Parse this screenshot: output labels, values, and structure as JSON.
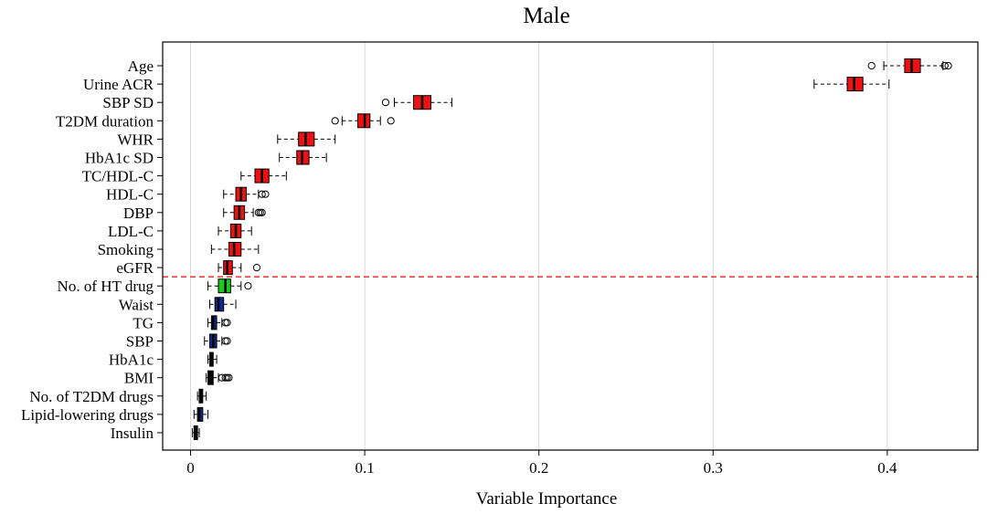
{
  "chart_data": {
    "type": "boxplot",
    "title": "Male",
    "xlabel": "Variable Importance",
    "ylabel": "",
    "xlim": [
      -0.016,
      0.452
    ],
    "xticks": [
      0,
      0.1,
      0.2,
      0.3,
      0.4
    ],
    "xtick_labels": [
      "0",
      "0.1",
      "0.2",
      "0.3",
      "0.4"
    ],
    "grid": "vertical",
    "threshold_between": [
      "eGFR",
      "No. of HT drug"
    ],
    "threshold_color": "#e8211c",
    "colors": {
      "red": "#ee1111",
      "green": "#1ec81e",
      "blue": "#102a8c",
      "black": "#000000",
      "grid": "#d9d9d9"
    },
    "variables": [
      {
        "label": "Age",
        "color": "red",
        "whisker_low": 0.398,
        "q1": 0.41,
        "median": 0.414,
        "q3": 0.419,
        "whisker_high": 0.432,
        "outliers": [
          0.391,
          0.433,
          0.435
        ]
      },
      {
        "label": "Urine ACR",
        "color": "red",
        "whisker_low": 0.358,
        "q1": 0.377,
        "median": 0.381,
        "q3": 0.386,
        "whisker_high": 0.401,
        "outliers": []
      },
      {
        "label": "SBP SD",
        "color": "red",
        "whisker_low": 0.117,
        "q1": 0.128,
        "median": 0.133,
        "q3": 0.138,
        "whisker_high": 0.15,
        "outliers": [
          0.112
        ]
      },
      {
        "label": "T2DM duration",
        "color": "red",
        "whisker_low": 0.087,
        "q1": 0.096,
        "median": 0.1,
        "q3": 0.103,
        "whisker_high": 0.109,
        "outliers": [
          0.083,
          0.115
        ]
      },
      {
        "label": "WHR",
        "color": "red",
        "whisker_low": 0.05,
        "q1": 0.062,
        "median": 0.066,
        "q3": 0.071,
        "whisker_high": 0.083,
        "outliers": []
      },
      {
        "label": "HbA1c SD",
        "color": "red",
        "whisker_low": 0.051,
        "q1": 0.061,
        "median": 0.064,
        "q3": 0.068,
        "whisker_high": 0.078,
        "outliers": []
      },
      {
        "label": "TC/HDL-C",
        "color": "red",
        "whisker_low": 0.029,
        "q1": 0.037,
        "median": 0.041,
        "q3": 0.045,
        "whisker_high": 0.055,
        "outliers": []
      },
      {
        "label": "HDL-C",
        "color": "red",
        "whisker_low": 0.019,
        "q1": 0.026,
        "median": 0.029,
        "q3": 0.032,
        "whisker_high": 0.039,
        "outliers": [
          0.041,
          0.043
        ]
      },
      {
        "label": "DBP",
        "color": "red",
        "whisker_low": 0.019,
        "q1": 0.025,
        "median": 0.028,
        "q3": 0.031,
        "whisker_high": 0.036,
        "outliers": [
          0.039,
          0.04,
          0.041
        ]
      },
      {
        "label": "LDL-C",
        "color": "red",
        "whisker_low": 0.016,
        "q1": 0.023,
        "median": 0.026,
        "q3": 0.029,
        "whisker_high": 0.035,
        "outliers": []
      },
      {
        "label": "Smoking",
        "color": "red",
        "whisker_low": 0.012,
        "q1": 0.022,
        "median": 0.025,
        "q3": 0.029,
        "whisker_high": 0.039,
        "outliers": []
      },
      {
        "label": "eGFR",
        "color": "red",
        "whisker_low": 0.016,
        "q1": 0.019,
        "median": 0.021,
        "q3": 0.024,
        "whisker_high": 0.029,
        "outliers": [
          0.038
        ]
      },
      {
        "label": "No. of HT drug",
        "color": "green",
        "whisker_low": 0.01,
        "q1": 0.016,
        "median": 0.02,
        "q3": 0.023,
        "whisker_high": 0.029,
        "outliers": [
          0.033
        ]
      },
      {
        "label": "Waist",
        "color": "blue",
        "whisker_low": 0.011,
        "q1": 0.014,
        "median": 0.016,
        "q3": 0.019,
        "whisker_high": 0.026,
        "outliers": []
      },
      {
        "label": "TG",
        "color": "blue",
        "whisker_low": 0.01,
        "q1": 0.012,
        "median": 0.013,
        "q3": 0.015,
        "whisker_high": 0.018,
        "outliers": [
          0.02,
          0.021
        ]
      },
      {
        "label": "SBP",
        "color": "blue",
        "whisker_low": 0.008,
        "q1": 0.011,
        "median": 0.013,
        "q3": 0.015,
        "whisker_high": 0.018,
        "outliers": [
          0.02,
          0.021
        ]
      },
      {
        "label": "HbA1c",
        "color": "black",
        "whisker_low": 0.01,
        "q1": 0.011,
        "median": 0.012,
        "q3": 0.013,
        "whisker_high": 0.015,
        "outliers": []
      },
      {
        "label": "BMI",
        "color": "black",
        "whisker_low": 0.009,
        "q1": 0.01,
        "median": 0.011,
        "q3": 0.013,
        "whisker_high": 0.016,
        "outliers": [
          0.018,
          0.02,
          0.021,
          0.022
        ]
      },
      {
        "label": "No. of T2DM drugs",
        "color": "black",
        "whisker_low": 0.004,
        "q1": 0.005,
        "median": 0.006,
        "q3": 0.007,
        "whisker_high": 0.009,
        "outliers": []
      },
      {
        "label": "Lipid-lowering drugs",
        "color": "blue",
        "whisker_low": 0.002,
        "q1": 0.004,
        "median": 0.005,
        "q3": 0.007,
        "whisker_high": 0.01,
        "outliers": []
      },
      {
        "label": "Insulin",
        "color": "black",
        "whisker_low": 0.001,
        "q1": 0.002,
        "median": 0.003,
        "q3": 0.004,
        "whisker_high": 0.005,
        "outliers": []
      }
    ]
  }
}
